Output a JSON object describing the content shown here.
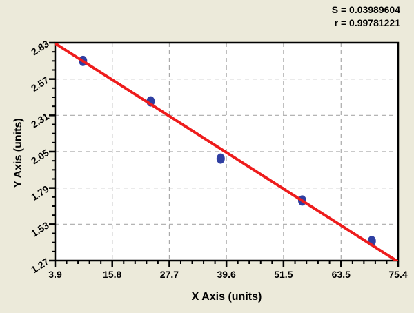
{
  "annotations": {
    "s_label": "S = 0.03989604",
    "r_label": "r = 0.99781221"
  },
  "chart_data": {
    "type": "scatter",
    "title": "",
    "xlabel": "X Axis (units)",
    "ylabel": "Y Axis (units)",
    "xlim": [
      3.9,
      75.4
    ],
    "ylim": [
      1.27,
      2.83
    ],
    "xticks": [
      "3.9",
      "15.8",
      "27.7",
      "39.6",
      "51.5",
      "63.5",
      "75.4"
    ],
    "xtick_values": [
      3.9,
      15.8,
      27.7,
      39.6,
      51.5,
      63.5,
      75.4
    ],
    "yticks": [
      "1.27",
      "1.53",
      "1.79",
      "2.05",
      "2.31",
      "2.57",
      "2.83"
    ],
    "ytick_values": [
      1.27,
      1.53,
      1.79,
      2.05,
      2.31,
      2.57,
      2.83
    ],
    "x_minor_per_interval": 4,
    "y_minor_per_interval": 3,
    "grid": true,
    "legend": "none",
    "points": [
      {
        "x": 9.7,
        "y": 2.7
      },
      {
        "x": 23.8,
        "y": 2.41
      },
      {
        "x": 38.4,
        "y": 2.0
      },
      {
        "x": 55.4,
        "y": 1.7
      },
      {
        "x": 69.9,
        "y": 1.41
      }
    ],
    "regression_line": {
      "slope": -0.02187,
      "intercept": 2.9103
    },
    "colors": {
      "background": "#ECEADA",
      "plot_bg": "#FFFFFF",
      "grid": "#A9A9A9",
      "line": "#EE1C1C",
      "point": "#2F3FA2",
      "frame": "#000000",
      "text": "#000000"
    }
  }
}
